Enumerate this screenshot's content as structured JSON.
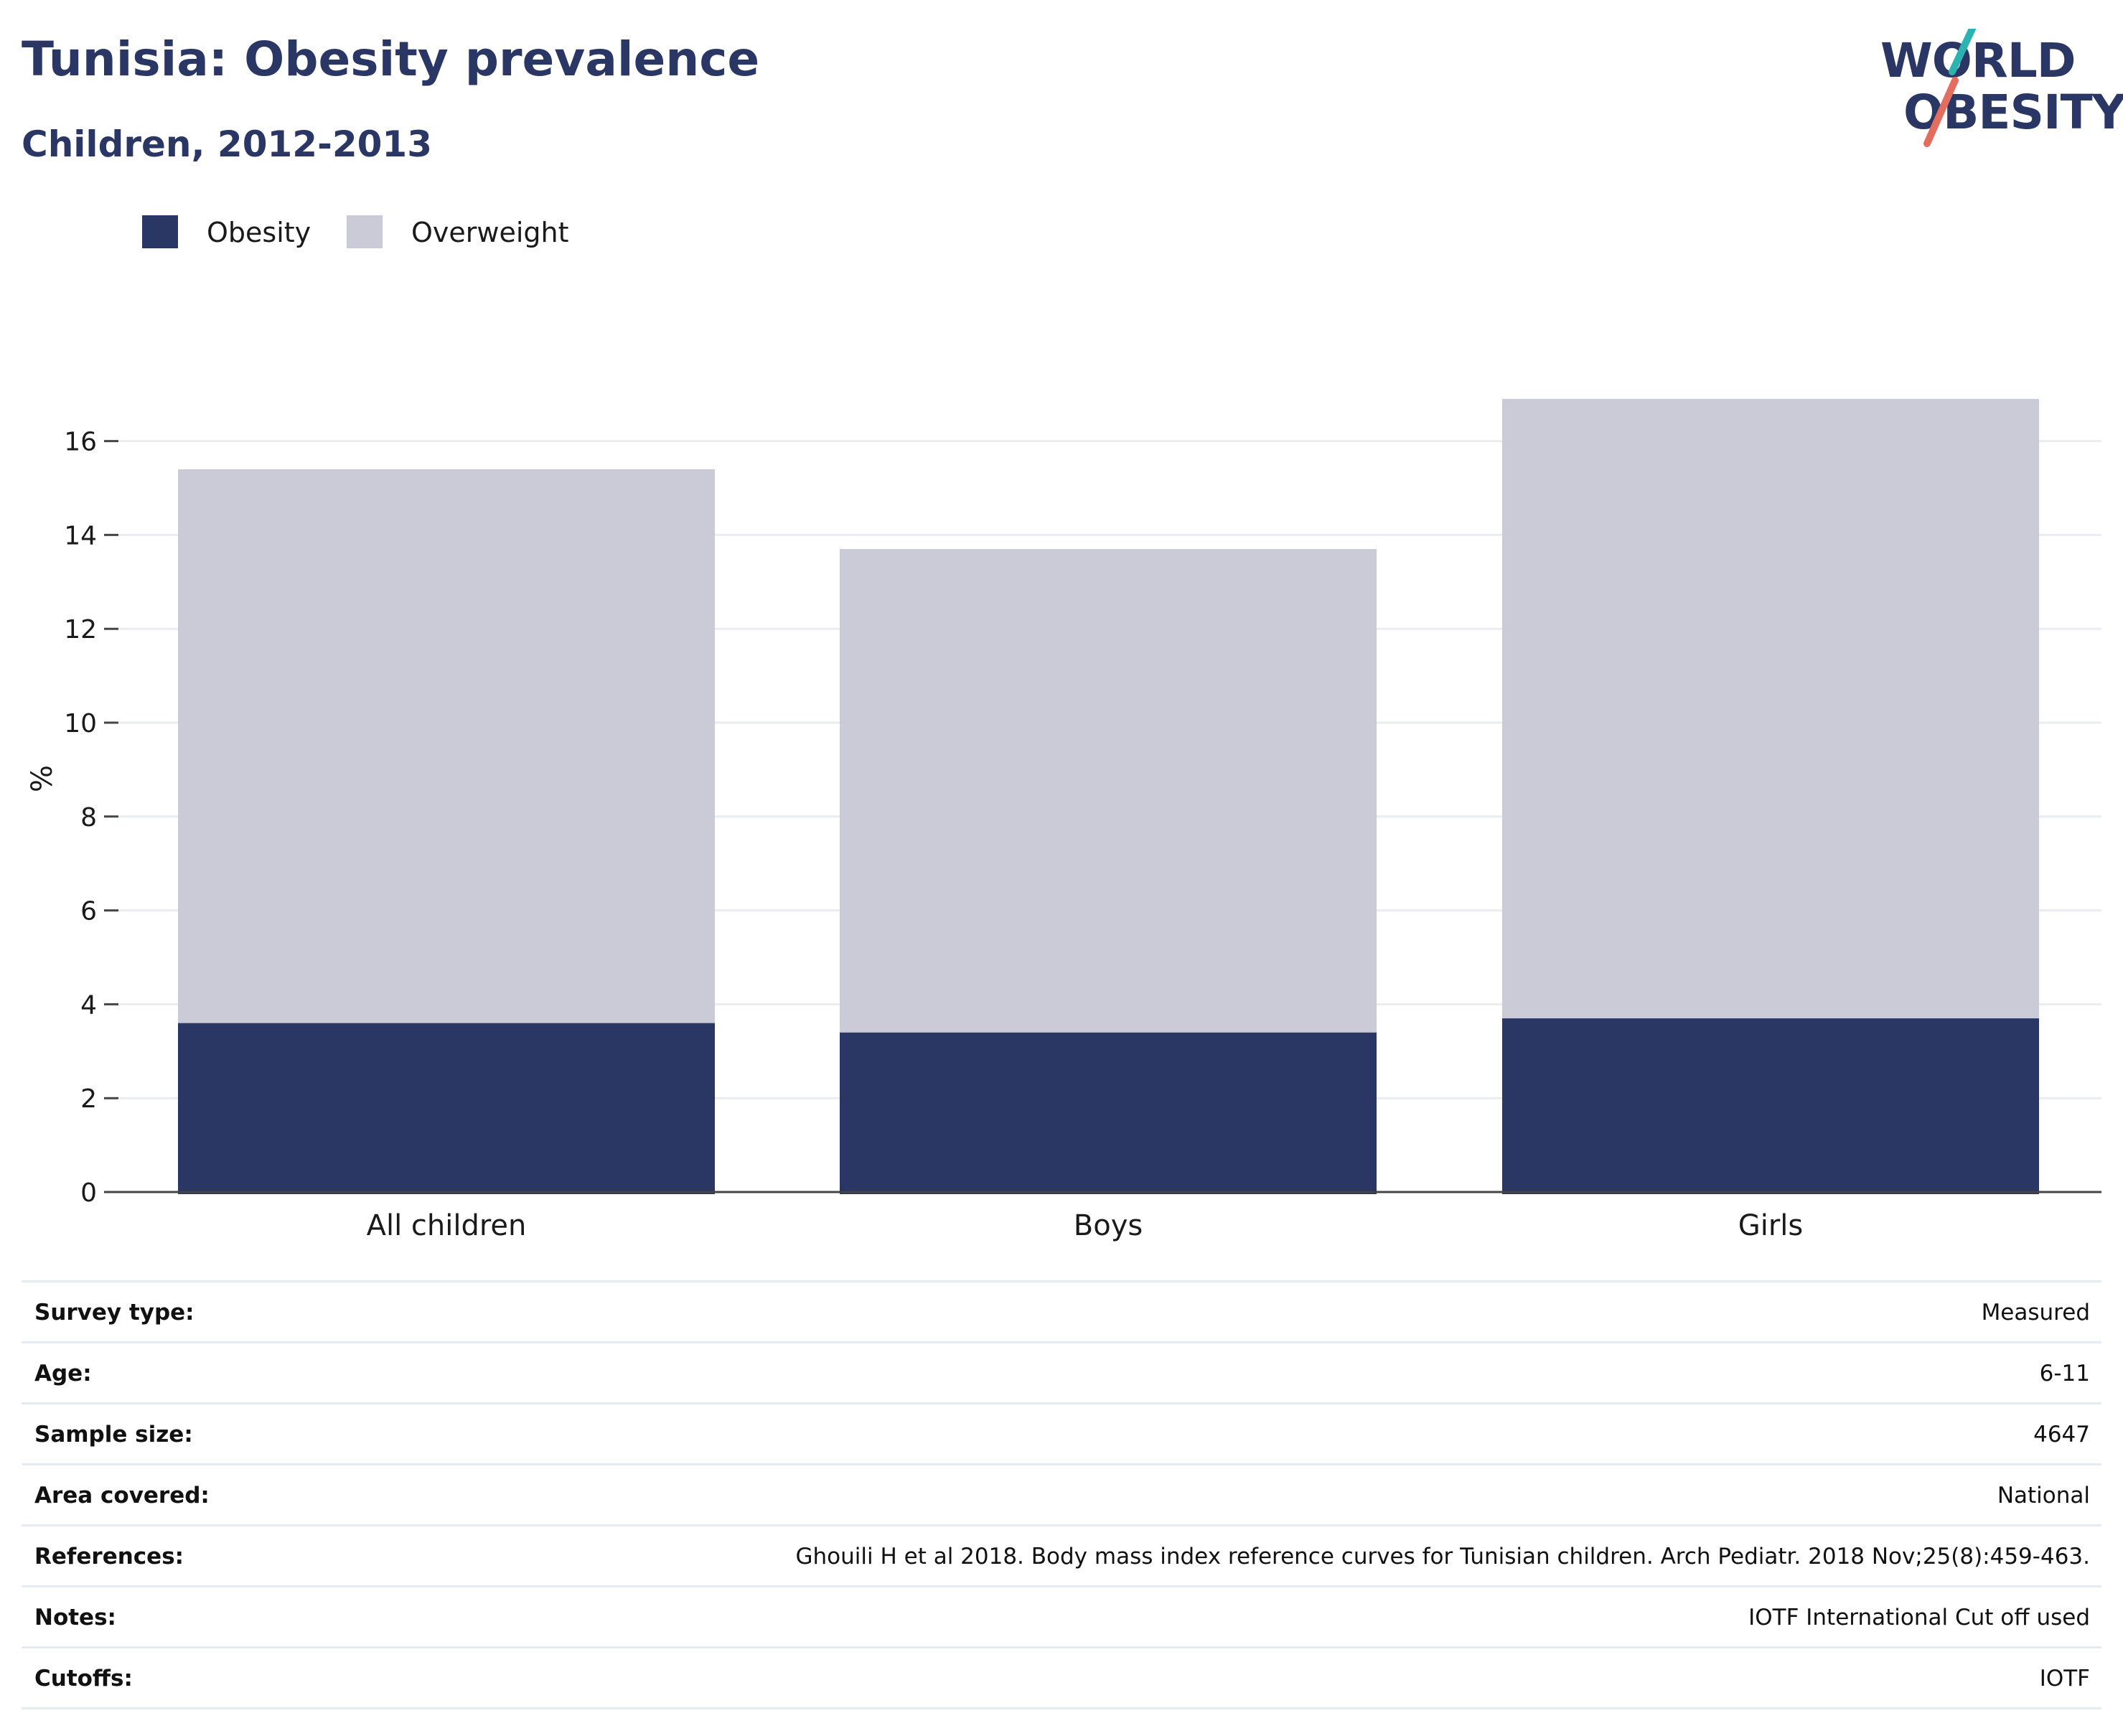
{
  "header": {
    "title": "Tunisia: Obesity prevalence",
    "subtitle": "Children, 2012-2013"
  },
  "logo": {
    "line1": "WORLD",
    "line2": "OBESITY",
    "colors": {
      "text": "#2a3663",
      "slash_top": "#2bb3b1",
      "slash_bottom": "#e36d5f"
    }
  },
  "legend": [
    {
      "label": "Obesity",
      "color": "#2a3663"
    },
    {
      "label": "Overweight",
      "color": "#cacbd7"
    }
  ],
  "chart_data": {
    "type": "bar",
    "stacked": true,
    "categories": [
      "All children",
      "Boys",
      "Girls"
    ],
    "series": [
      {
        "name": "Obesity",
        "color": "#2a3663",
        "values": [
          3.6,
          3.4,
          3.7
        ]
      },
      {
        "name": "Overweight",
        "color": "#cacbd7",
        "values": [
          11.8,
          10.3,
          13.2
        ]
      }
    ],
    "ylabel": "%",
    "yticks": [
      0,
      2,
      4,
      6,
      8,
      10,
      12,
      14,
      16
    ],
    "ylim": [
      0,
      17.6
    ],
    "grid": true,
    "legend_position": "top-left"
  },
  "info": [
    {
      "label": "Survey type:",
      "value": "Measured"
    },
    {
      "label": "Age:",
      "value": "6-11"
    },
    {
      "label": "Sample size:",
      "value": "4647"
    },
    {
      "label": "Area covered:",
      "value": "National"
    },
    {
      "label": "References:",
      "value": "Ghouili H et al 2018. Body mass index reference curves for Tunisian children. Arch Pediatr. 2018 Nov;25(8):459-463."
    },
    {
      "label": "Notes:",
      "value": "IOTF International Cut off used"
    },
    {
      "label": "Cutoffs:",
      "value": "IOTF"
    }
  ]
}
